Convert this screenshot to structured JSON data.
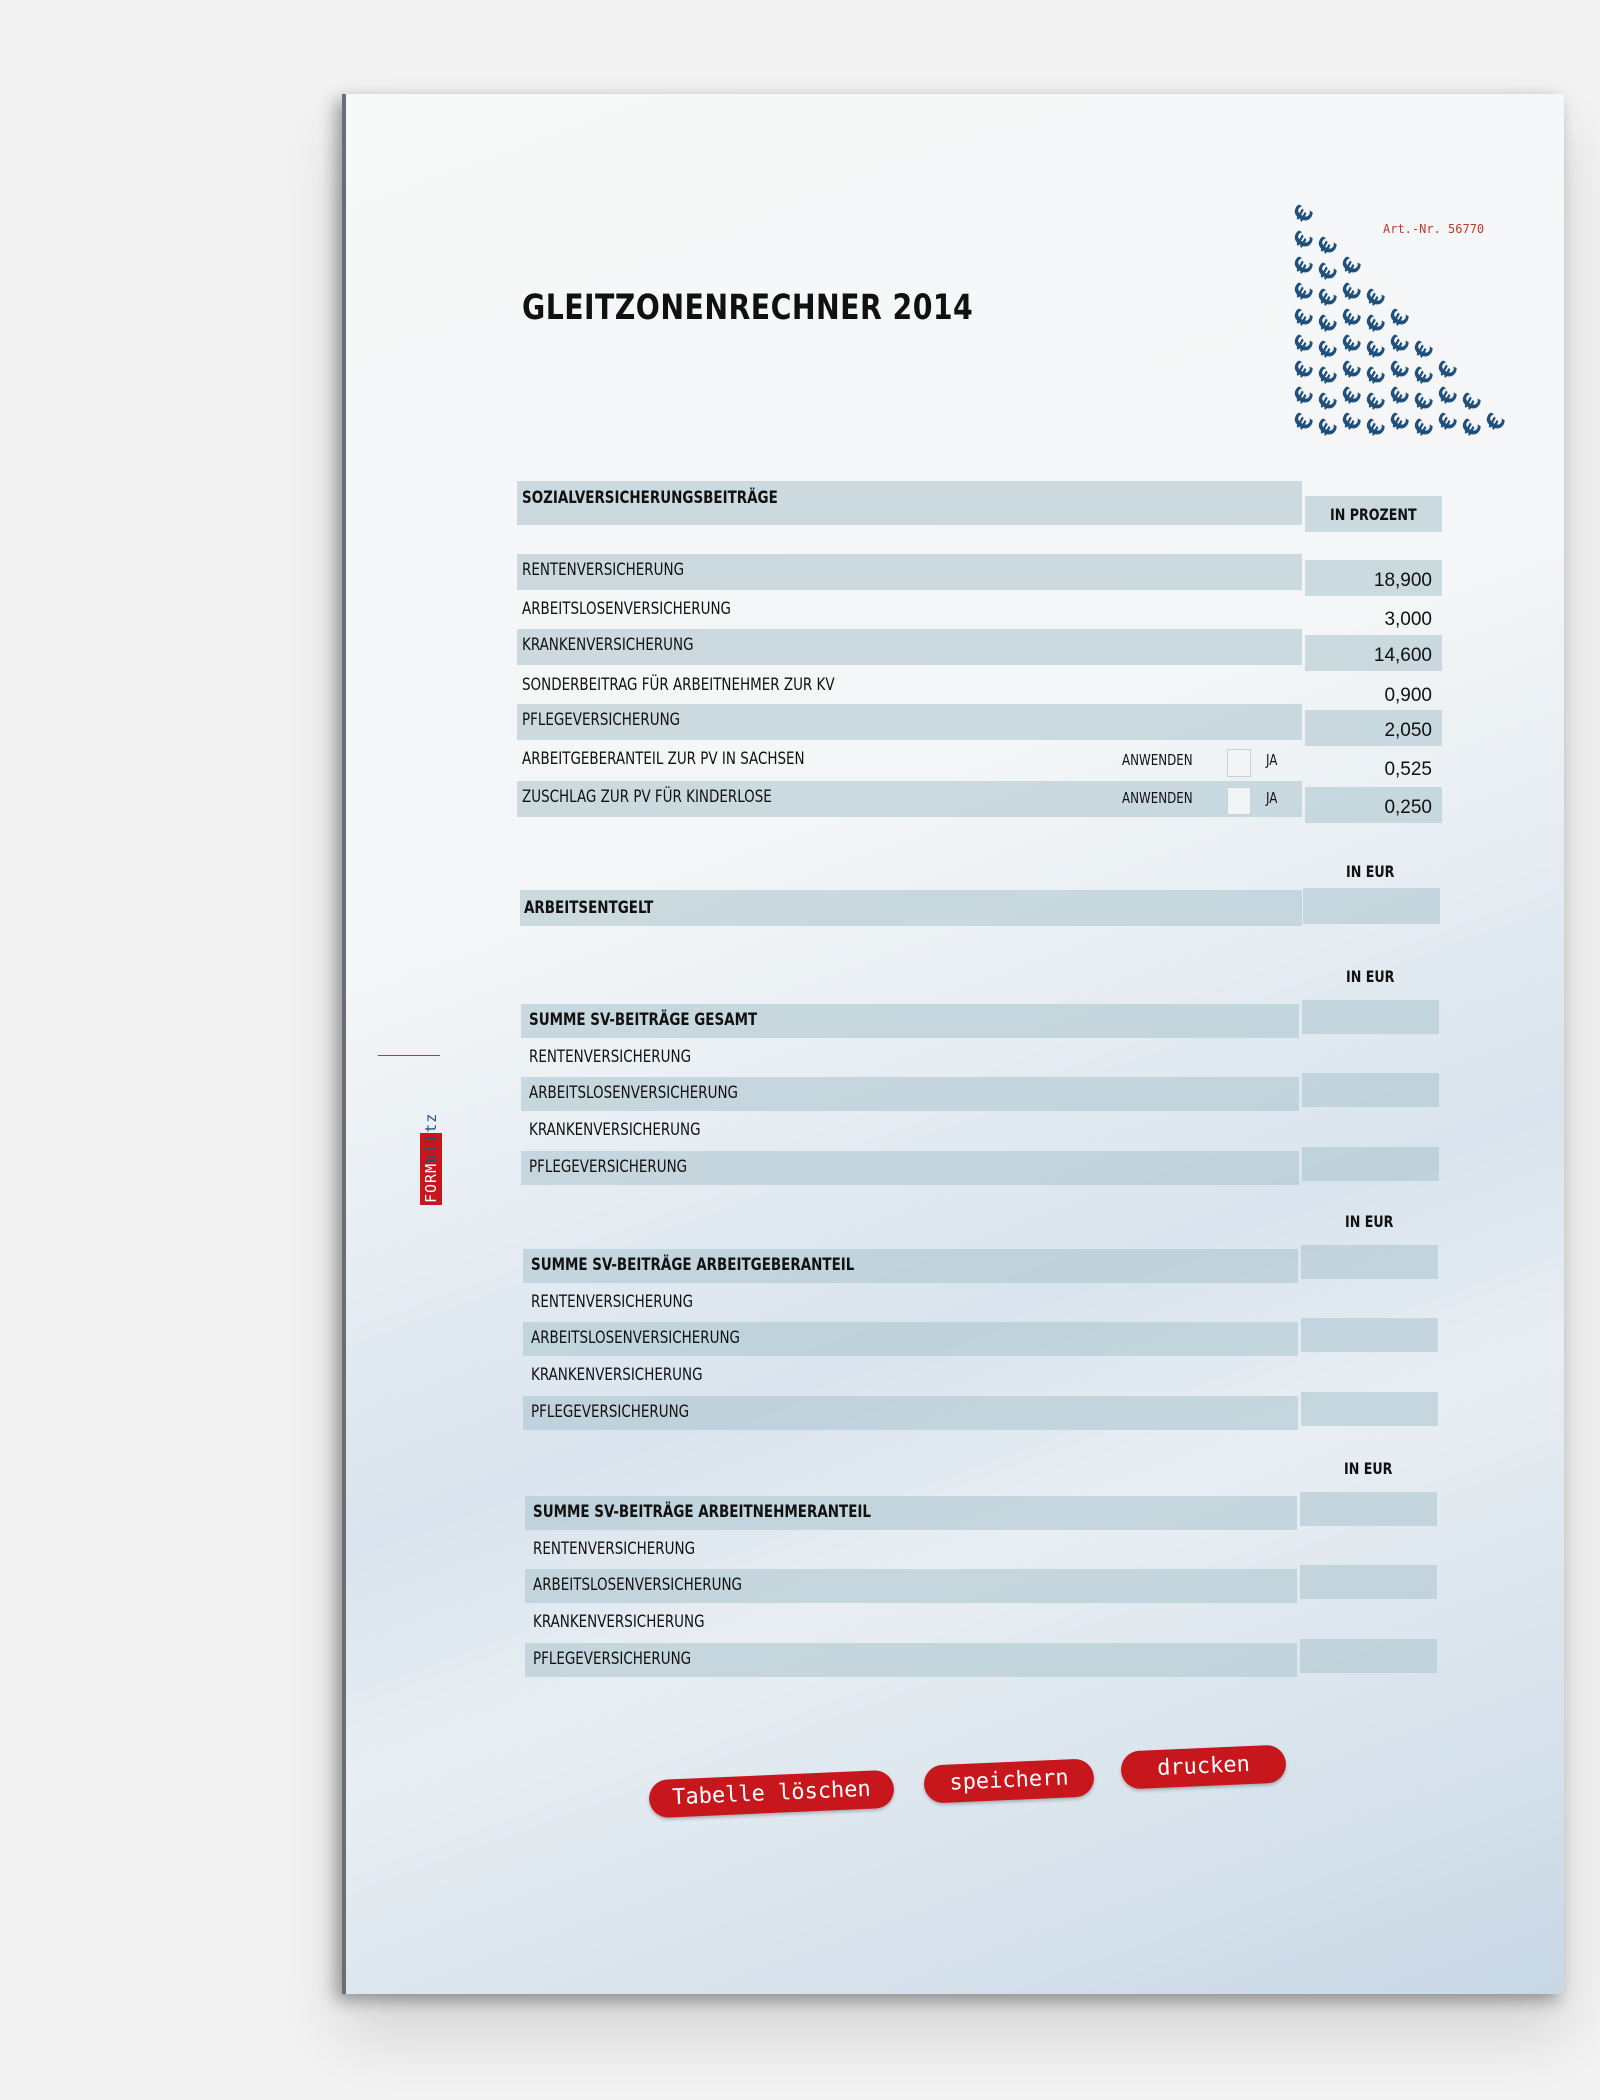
{
  "document": {
    "title": "GLEITZONENRECHNER 2014",
    "article_number": "Art.-Nr. 56770",
    "logo": {
      "form": "FORM",
      "blitz": "blitz"
    },
    "decoration": "euro-pattern-triangle"
  },
  "contributions": {
    "header": "SOZIALVERSICHERUNGSBEITRÄGE",
    "column_header": "IN PROZENT",
    "rows": [
      {
        "label": "RENTENVERSICHERUNG",
        "value": "18,900"
      },
      {
        "label": "ARBEITSLOSENVERSICHERUNG",
        "value": "3,000"
      },
      {
        "label": "KRANKENVERSICHERUNG",
        "value": "14,600"
      },
      {
        "label": "SONDERBEITRAG FÜR ARBEITNEHMER ZUR KV",
        "value": "0,900"
      },
      {
        "label": "PFLEGEVERSICHERUNG",
        "value": "2,050"
      },
      {
        "label": "ARBEITGEBERANTEIL ZUR PV IN SACHSEN",
        "value": "0,525",
        "apply_label": "ANWENDEN",
        "checkbox_label": "JA",
        "checked": false
      },
      {
        "label": "ZUSCHLAG ZUR PV FÜR KINDERLOSE",
        "value": "0,250",
        "apply_label": "ANWENDEN",
        "checkbox_label": "JA",
        "checked": false
      }
    ]
  },
  "arbeitsentgelt": {
    "column_header": "IN EUR",
    "label": "ARBEITSENTGELT",
    "value": ""
  },
  "sums": [
    {
      "column_header": "IN EUR",
      "title": "SUMME SV-BEITRÄGE GESAMT",
      "rows": [
        "RENTENVERSICHERUNG",
        "ARBEITSLOSENVERSICHERUNG",
        "KRANKENVERSICHERUNG",
        "PFLEGEVERSICHERUNG"
      ]
    },
    {
      "column_header": "IN EUR",
      "title": "SUMME SV-BEITRÄGE ARBEITGEBERANTEIL",
      "rows": [
        "RENTENVERSICHERUNG",
        "ARBEITSLOSENVERSICHERUNG",
        "KRANKENVERSICHERUNG",
        "PFLEGEVERSICHERUNG"
      ]
    },
    {
      "column_header": "IN EUR",
      "title": "SUMME SV-BEITRÄGE ARBEITNEHMERANTEIL",
      "rows": [
        "RENTENVERSICHERUNG",
        "ARBEITSLOSENVERSICHERUNG",
        "KRANKENVERSICHERUNG",
        "PFLEGEVERSICHERUNG"
      ]
    }
  ],
  "buttons": {
    "clear": "Tabelle löschen",
    "save": "speichern",
    "print": "drucken"
  },
  "colors": {
    "accent_red": "#c8161d",
    "band": "#aac2cc",
    "euro_blue": "#1f4f7c"
  }
}
